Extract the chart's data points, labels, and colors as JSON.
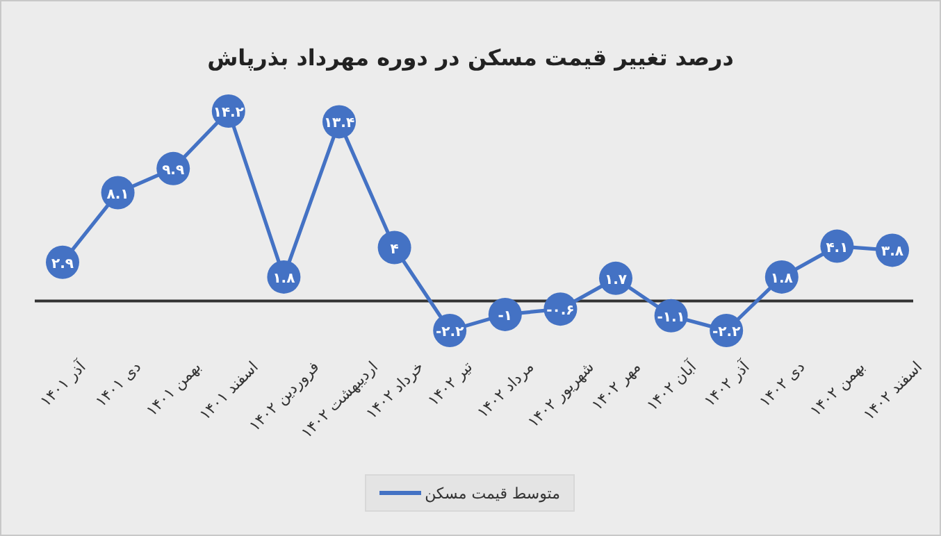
{
  "chart_data": {
    "type": "line",
    "title": "درصد تغییر قیمت مسکن در دوره مهرداد بذرپاش",
    "categories": [
      "آذر ۱۴۰۱",
      "دی ۱۴۰۱",
      "بهمن ۱۴۰۱",
      "اسفند ۱۴۰۱",
      "فروردین ۱۴۰۲",
      "اردیبهشت ۱۴۰۲",
      "خرداد ۱۴۰۲",
      "تیر ۱۴۰۲",
      "مرداد ۱۴۰۲",
      "شهریور ۱۴۰۲",
      "مهر ۱۴۰۲",
      "آبان ۱۴۰۲",
      "آذر ۱۴۰۲",
      "دی ۱۴۰۲",
      "بهمن ۱۴۰۲",
      "اسفند ۱۴۰۲"
    ],
    "series": [
      {
        "name": "متوسط قیمت مسکن",
        "color": "#4472c4",
        "values": [
          2.9,
          8.1,
          9.9,
          14.2,
          1.8,
          13.4,
          4,
          -2.2,
          -1,
          -0.6,
          1.7,
          -1.1,
          -2.2,
          1.8,
          4.1,
          3.8
        ],
        "value_labels": [
          "۲.۹",
          "۸.۱",
          "۹.۹",
          "۱۴.۲",
          "۱.۸",
          "۱۳.۴",
          "۴",
          "-۲.۲",
          "-۱",
          "-۰.۶",
          "۱.۷",
          "-۱.۱",
          "-۲.۲",
          "۱.۸",
          "۴.۱",
          "۳.۸"
        ]
      }
    ],
    "legend": "bottom",
    "marker": "circle",
    "line_style": "solid",
    "grid": false
  }
}
